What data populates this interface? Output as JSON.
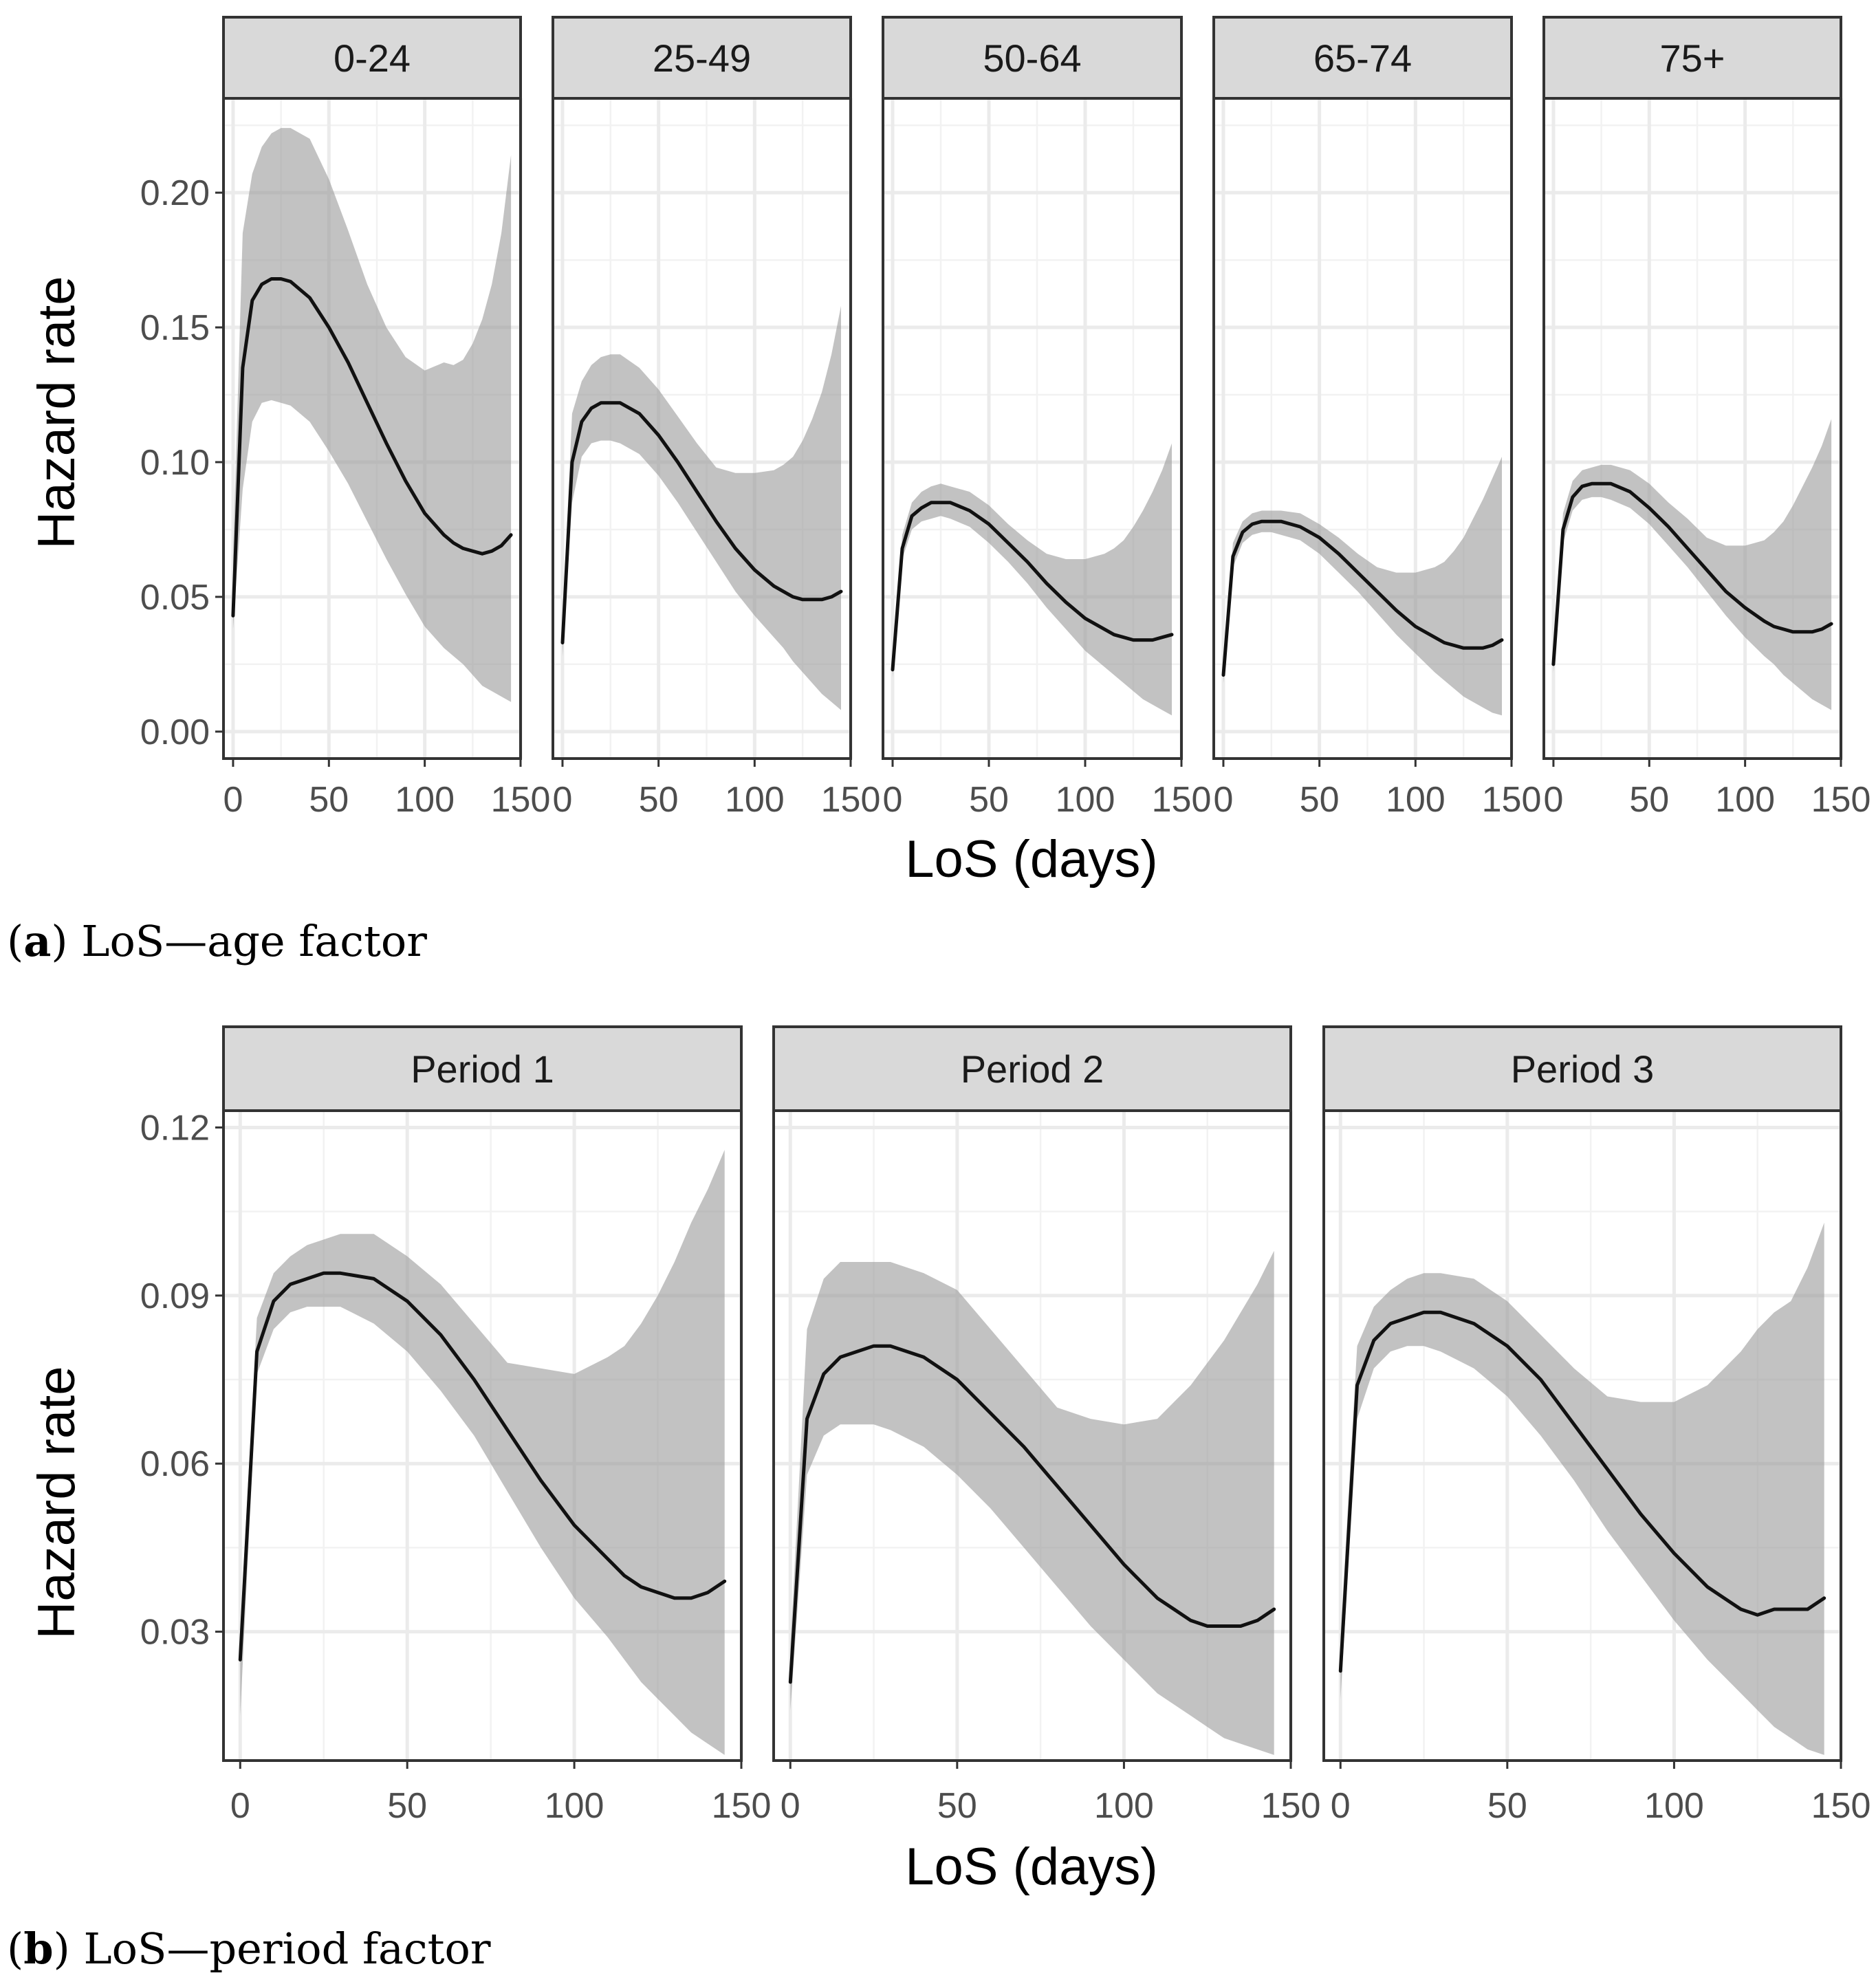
{
  "chart_data": [
    {
      "type": "line",
      "caption_letter": "a",
      "caption_text": "LoS—age factor",
      "xlabel": "LoS (days)",
      "ylabel": "Hazard rate",
      "xlim": [
        -5,
        150
      ],
      "ylim": [
        -0.01,
        0.235
      ],
      "xticks": [
        0,
        50,
        100,
        150
      ],
      "xtick_labels": [
        "0",
        "50",
        "100",
        "150"
      ],
      "yticks": [
        0.0,
        0.05,
        0.1,
        0.15,
        0.2
      ],
      "ytick_labels": [
        "0.00",
        "0.05",
        "0.10",
        "0.15",
        "0.20"
      ],
      "grid": true,
      "series": [
        {
          "name": "0-24",
          "x": [
            0,
            5,
            10,
            15,
            20,
            25,
            30,
            40,
            50,
            60,
            70,
            80,
            90,
            100,
            110,
            115,
            120,
            125,
            130,
            135,
            140,
            145
          ],
          "y": [
            0.043,
            0.135,
            0.16,
            0.166,
            0.168,
            0.168,
            0.167,
            0.161,
            0.15,
            0.137,
            0.122,
            0.107,
            0.093,
            0.081,
            0.073,
            0.07,
            0.068,
            0.067,
            0.066,
            0.067,
            0.069,
            0.073
          ],
          "lower": [
            0.038,
            0.09,
            0.115,
            0.122,
            0.123,
            0.122,
            0.121,
            0.115,
            0.104,
            0.092,
            0.078,
            0.064,
            0.051,
            0.039,
            0.031,
            0.028,
            0.025,
            0.021,
            0.017,
            0.015,
            0.013,
            0.011
          ],
          "upper": [
            0.065,
            0.185,
            0.207,
            0.217,
            0.222,
            0.224,
            0.224,
            0.22,
            0.205,
            0.186,
            0.166,
            0.15,
            0.139,
            0.134,
            0.137,
            0.136,
            0.138,
            0.144,
            0.153,
            0.166,
            0.185,
            0.214
          ]
        },
        {
          "name": "25-49",
          "x": [
            0,
            5,
            10,
            15,
            20,
            25,
            30,
            40,
            50,
            60,
            70,
            80,
            90,
            100,
            110,
            115,
            120,
            125,
            130,
            135,
            140,
            145
          ],
          "y": [
            0.033,
            0.1,
            0.115,
            0.12,
            0.122,
            0.122,
            0.122,
            0.118,
            0.11,
            0.1,
            0.089,
            0.078,
            0.068,
            0.06,
            0.054,
            0.052,
            0.05,
            0.049,
            0.049,
            0.049,
            0.05,
            0.052
          ],
          "lower": [
            0.028,
            0.085,
            0.102,
            0.107,
            0.108,
            0.108,
            0.107,
            0.103,
            0.095,
            0.085,
            0.074,
            0.063,
            0.052,
            0.043,
            0.035,
            0.031,
            0.026,
            0.022,
            0.018,
            0.014,
            0.011,
            0.008
          ],
          "upper": [
            0.04,
            0.118,
            0.13,
            0.136,
            0.139,
            0.14,
            0.14,
            0.135,
            0.127,
            0.117,
            0.107,
            0.098,
            0.096,
            0.096,
            0.097,
            0.099,
            0.102,
            0.108,
            0.116,
            0.126,
            0.14,
            0.158
          ]
        },
        {
          "name": "50-64",
          "x": [
            0,
            5,
            10,
            15,
            20,
            25,
            30,
            40,
            50,
            60,
            70,
            80,
            90,
            100,
            110,
            115,
            120,
            125,
            130,
            135,
            140,
            145
          ],
          "y": [
            0.023,
            0.068,
            0.08,
            0.083,
            0.085,
            0.085,
            0.085,
            0.082,
            0.077,
            0.07,
            0.063,
            0.055,
            0.048,
            0.042,
            0.038,
            0.036,
            0.035,
            0.034,
            0.034,
            0.034,
            0.035,
            0.036
          ],
          "lower": [
            0.02,
            0.064,
            0.075,
            0.078,
            0.079,
            0.08,
            0.079,
            0.076,
            0.07,
            0.063,
            0.055,
            0.046,
            0.038,
            0.03,
            0.024,
            0.021,
            0.018,
            0.015,
            0.012,
            0.01,
            0.008,
            0.006
          ],
          "upper": [
            0.027,
            0.073,
            0.085,
            0.089,
            0.091,
            0.092,
            0.091,
            0.089,
            0.084,
            0.077,
            0.071,
            0.066,
            0.064,
            0.064,
            0.066,
            0.068,
            0.071,
            0.076,
            0.082,
            0.089,
            0.097,
            0.107
          ]
        },
        {
          "name": "65-74",
          "x": [
            0,
            5,
            10,
            15,
            20,
            25,
            30,
            40,
            50,
            60,
            70,
            80,
            90,
            100,
            110,
            115,
            120,
            125,
            130,
            135,
            140,
            145
          ],
          "y": [
            0.021,
            0.065,
            0.074,
            0.077,
            0.078,
            0.078,
            0.078,
            0.076,
            0.072,
            0.066,
            0.059,
            0.052,
            0.045,
            0.039,
            0.035,
            0.033,
            0.032,
            0.031,
            0.031,
            0.031,
            0.032,
            0.034
          ],
          "lower": [
            0.018,
            0.061,
            0.07,
            0.073,
            0.074,
            0.074,
            0.073,
            0.071,
            0.066,
            0.059,
            0.052,
            0.044,
            0.036,
            0.029,
            0.022,
            0.019,
            0.016,
            0.013,
            0.011,
            0.009,
            0.007,
            0.006
          ],
          "upper": [
            0.024,
            0.07,
            0.078,
            0.081,
            0.082,
            0.082,
            0.082,
            0.081,
            0.077,
            0.072,
            0.066,
            0.061,
            0.059,
            0.059,
            0.061,
            0.063,
            0.067,
            0.072,
            0.079,
            0.086,
            0.094,
            0.102
          ]
        },
        {
          "name": "75+",
          "x": [
            0,
            5,
            10,
            15,
            20,
            25,
            30,
            40,
            50,
            60,
            70,
            80,
            90,
            100,
            110,
            115,
            120,
            125,
            130,
            135,
            140,
            145
          ],
          "y": [
            0.025,
            0.075,
            0.087,
            0.091,
            0.092,
            0.092,
            0.092,
            0.089,
            0.083,
            0.076,
            0.068,
            0.06,
            0.052,
            0.046,
            0.041,
            0.039,
            0.038,
            0.037,
            0.037,
            0.037,
            0.038,
            0.04
          ],
          "lower": [
            0.022,
            0.07,
            0.082,
            0.086,
            0.087,
            0.087,
            0.086,
            0.083,
            0.077,
            0.069,
            0.061,
            0.052,
            0.043,
            0.035,
            0.028,
            0.025,
            0.021,
            0.018,
            0.015,
            0.012,
            0.01,
            0.008
          ],
          "upper": [
            0.029,
            0.081,
            0.093,
            0.097,
            0.098,
            0.099,
            0.099,
            0.097,
            0.092,
            0.085,
            0.079,
            0.072,
            0.069,
            0.069,
            0.071,
            0.074,
            0.078,
            0.084,
            0.091,
            0.098,
            0.106,
            0.116
          ]
        }
      ]
    },
    {
      "type": "line",
      "caption_letter": "b",
      "caption_text": "LoS—period factor",
      "xlabel": "LoS (days)",
      "ylabel": "Hazard rate",
      "xlim": [
        -5,
        150
      ],
      "ylim": [
        0.007,
        0.123
      ],
      "xticks": [
        0,
        50,
        100,
        150
      ],
      "xtick_labels": [
        "0",
        "50",
        "100",
        "150"
      ],
      "yticks": [
        0.03,
        0.06,
        0.09,
        0.12
      ],
      "ytick_labels": [
        "0.03",
        "0.06",
        "0.09",
        "0.12"
      ],
      "grid": true,
      "series": [
        {
          "name": "Period 1",
          "x": [
            0,
            5,
            10,
            15,
            20,
            25,
            30,
            40,
            50,
            60,
            70,
            80,
            90,
            100,
            110,
            115,
            120,
            125,
            130,
            135,
            140,
            145
          ],
          "y": [
            0.025,
            0.08,
            0.089,
            0.092,
            0.093,
            0.094,
            0.094,
            0.093,
            0.089,
            0.083,
            0.075,
            0.066,
            0.057,
            0.049,
            0.043,
            0.04,
            0.038,
            0.037,
            0.036,
            0.036,
            0.037,
            0.039
          ],
          "lower": [
            0.015,
            0.076,
            0.084,
            0.087,
            0.088,
            0.088,
            0.088,
            0.085,
            0.08,
            0.073,
            0.065,
            0.055,
            0.045,
            0.036,
            0.029,
            0.025,
            0.021,
            0.018,
            0.015,
            0.012,
            0.01,
            0.008
          ],
          "upper": [
            0.03,
            0.086,
            0.094,
            0.097,
            0.099,
            0.1,
            0.101,
            0.101,
            0.097,
            0.092,
            0.085,
            0.078,
            0.077,
            0.076,
            0.079,
            0.081,
            0.085,
            0.09,
            0.096,
            0.103,
            0.109,
            0.116
          ]
        },
        {
          "name": "Period 2",
          "x": [
            0,
            5,
            10,
            15,
            20,
            25,
            30,
            40,
            50,
            60,
            70,
            80,
            90,
            100,
            110,
            115,
            120,
            125,
            130,
            135,
            140,
            145
          ],
          "y": [
            0.021,
            0.068,
            0.076,
            0.079,
            0.08,
            0.081,
            0.081,
            0.079,
            0.075,
            0.069,
            0.063,
            0.056,
            0.049,
            0.042,
            0.036,
            0.034,
            0.032,
            0.031,
            0.031,
            0.031,
            0.032,
            0.034
          ],
          "lower": [
            0.016,
            0.058,
            0.065,
            0.067,
            0.067,
            0.067,
            0.066,
            0.063,
            0.058,
            0.052,
            0.045,
            0.038,
            0.031,
            0.025,
            0.019,
            0.017,
            0.015,
            0.013,
            0.011,
            0.01,
            0.009,
            0.008
          ],
          "upper": [
            0.027,
            0.084,
            0.093,
            0.096,
            0.096,
            0.096,
            0.096,
            0.094,
            0.091,
            0.084,
            0.077,
            0.07,
            0.068,
            0.067,
            0.068,
            0.071,
            0.074,
            0.078,
            0.082,
            0.087,
            0.092,
            0.098
          ]
        },
        {
          "name": "Period 3",
          "x": [
            0,
            5,
            10,
            15,
            20,
            25,
            30,
            40,
            50,
            60,
            70,
            80,
            90,
            100,
            110,
            115,
            120,
            125,
            130,
            135,
            140,
            145
          ],
          "y": [
            0.023,
            0.074,
            0.082,
            0.085,
            0.086,
            0.087,
            0.087,
            0.085,
            0.081,
            0.075,
            0.067,
            0.059,
            0.051,
            0.044,
            0.038,
            0.036,
            0.034,
            0.033,
            0.034,
            0.034,
            0.034,
            0.036
          ],
          "lower": [
            0.018,
            0.068,
            0.077,
            0.08,
            0.081,
            0.081,
            0.08,
            0.077,
            0.072,
            0.065,
            0.057,
            0.048,
            0.04,
            0.032,
            0.025,
            0.022,
            0.019,
            0.016,
            0.013,
            0.011,
            0.009,
            0.008
          ],
          "upper": [
            0.029,
            0.081,
            0.088,
            0.091,
            0.093,
            0.094,
            0.094,
            0.093,
            0.089,
            0.083,
            0.077,
            0.072,
            0.071,
            0.071,
            0.074,
            0.077,
            0.08,
            0.084,
            0.087,
            0.089,
            0.095,
            0.103
          ]
        }
      ]
    }
  ]
}
